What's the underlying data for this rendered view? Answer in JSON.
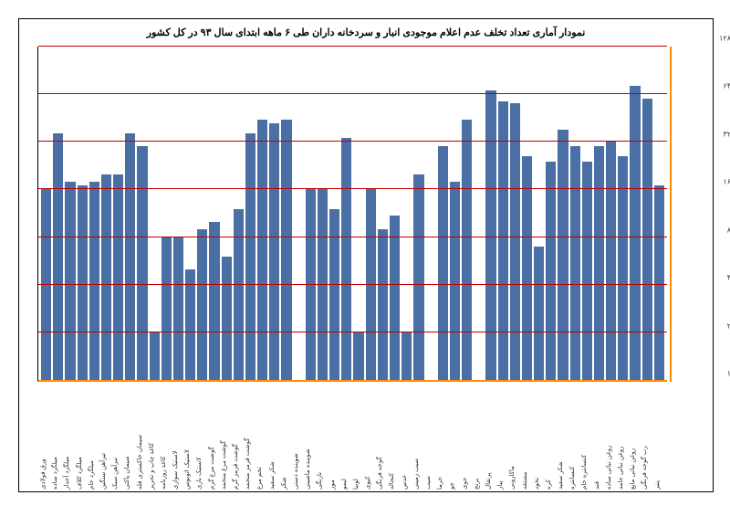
{
  "chart": {
    "type": "bar",
    "title": "نمودار آماری تعداد تخلف عدم اعلام موجودی انبار و سردخانه داران طی ۶ ماهه ابتدای سال ۹۳ در کل کشور",
    "title_fontsize": 11,
    "background_color": "#ffffff",
    "border_color": "#000000",
    "axis_accent_color": "#ff8c00",
    "grid_color": "#c00000",
    "bar_color": "#4a6fa5",
    "y_scale": "log2_like",
    "y_ticks": [
      1,
      2,
      4,
      8,
      16,
      32,
      64,
      128
    ],
    "y_tick_labels": [
      "۱",
      "۲",
      "۴",
      "۸",
      "۱۶",
      "۳۲",
      "۶۴",
      "۱۲۸"
    ],
    "y_max": 128,
    "categories": [
      "ورق فولادی",
      "میلگرد ساده",
      "میلگرد آجدار",
      "میلگرد کلاف",
      "میلگرد خام",
      "تیرآهن سنگین",
      "تیرآهن سبک",
      "سیمان پاکتی",
      "سیمان خاکستری فله",
      "کاغذ چاپ و تحریر",
      "کاغذ روزنامه",
      "لاستیک سواری",
      "لاستیک اتوبوس",
      "لاستیک باری",
      "گوشت مرغ گرم",
      "گوشت مرغ منجمد",
      "گوشت قرمز گرم",
      "گوشت قرمز منجمد",
      "تخم مرغ",
      "شکر سفید",
      "شکر",
      "شوینده دستی",
      "شوینده ماشینی",
      "نارنگی",
      "موز",
      "لیمو",
      "لوبیا",
      "کیوی",
      "گوجه فرنگی",
      "کنجاله",
      "عدس",
      "سیب زمینی",
      "سیب",
      "خرما",
      "جو",
      "جوی",
      "برنج",
      "پرتقال",
      "پیاز",
      "ماکارونی",
      "مشتقه",
      "نخود",
      "کره",
      "شکر سفید",
      "کنسانتره",
      "کنسانتره خام",
      "قند",
      "روغن نباتی ساده",
      "روغن نباتی جامد",
      "روغن نباتی مایع",
      "رب گوجه فرنگی",
      "پنیر"
    ],
    "values": [
      16,
      36,
      18,
      17,
      18,
      20,
      20,
      36,
      30,
      2,
      8,
      8,
      5,
      9,
      10,
      6,
      12,
      36,
      44,
      42,
      44,
      1,
      16,
      16,
      12,
      34,
      2,
      16,
      9,
      11,
      2,
      20,
      1,
      30,
      18,
      44,
      1,
      68,
      58,
      56,
      26,
      7,
      24,
      38,
      30,
      24,
      30,
      32,
      26,
      72,
      60,
      17
    ]
  }
}
